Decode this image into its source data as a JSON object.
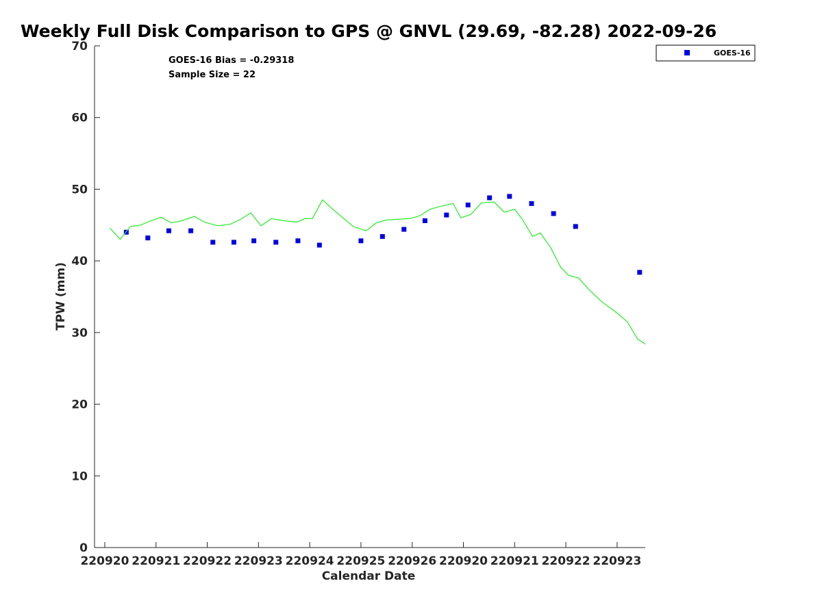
{
  "chart_data": {
    "type": "scatter",
    "title": "Weekly Full Disk Comparison to GPS @ GNVL (29.69, -82.28) 2022-09-26",
    "xlabel": "Calendar Date",
    "ylabel": "TPW (mm)",
    "ylim": [
      0,
      70
    ],
    "yticks": [
      0,
      10,
      20,
      30,
      40,
      50,
      60,
      70
    ],
    "xlim": [
      -0.2,
      10.55
    ],
    "xticks": [
      {
        "pos": 0,
        "label": "220920"
      },
      {
        "pos": 1,
        "label": "220921"
      },
      {
        "pos": 2,
        "label": "220922"
      },
      {
        "pos": 3,
        "label": "220923"
      },
      {
        "pos": 4,
        "label": "220924"
      },
      {
        "pos": 5,
        "label": "220925"
      },
      {
        "pos": 6,
        "label": "220926"
      },
      {
        "pos": 7,
        "label": "220920"
      },
      {
        "pos": 8,
        "label": "220921"
      },
      {
        "pos": 9,
        "label": "220922"
      },
      {
        "pos": 10,
        "label": "220923"
      }
    ],
    "grid": false,
    "legend_position": "top-right",
    "annotations": [
      "GOES-16 Bias = -0.29318",
      "Sample Size = 22"
    ],
    "series": [
      {
        "name": "GOES-16",
        "type": "scatter",
        "color": "#0000e6",
        "marker": "square",
        "x": [
          0.42,
          0.84,
          1.25,
          1.68,
          2.11,
          2.52,
          2.91,
          3.34,
          3.77,
          4.19,
          5.0,
          5.42,
          5.84,
          6.25,
          6.67,
          7.09,
          7.51,
          7.9,
          8.33,
          8.76,
          9.19,
          10.44
        ],
        "y": [
          44.0,
          43.2,
          44.2,
          44.2,
          42.6,
          42.6,
          42.8,
          42.6,
          42.8,
          42.2,
          42.8,
          43.4,
          44.4,
          45.6,
          46.4,
          47.8,
          48.8,
          49.0,
          48.0,
          46.6,
          44.8,
          38.4
        ]
      },
      {
        "name": "",
        "type": "line",
        "color": "#22ee22",
        "x": [
          0.1,
          0.3,
          0.5,
          0.7,
          0.9,
          1.1,
          1.3,
          1.5,
          1.75,
          1.95,
          2.2,
          2.45,
          2.65,
          2.85,
          3.05,
          3.25,
          3.5,
          3.75,
          3.9,
          4.05,
          4.25,
          4.45,
          4.65,
          4.85,
          5.1,
          5.3,
          5.5,
          5.7,
          5.95,
          6.15,
          6.35,
          6.55,
          6.8,
          6.95,
          7.15,
          7.35,
          7.6,
          7.8,
          8.0,
          8.15,
          8.35,
          8.5,
          8.7,
          8.9,
          9.05,
          9.25,
          9.45,
          9.7,
          9.95,
          10.2,
          10.4,
          10.55
        ],
        "y": [
          44.6,
          43.0,
          44.8,
          45.0,
          45.6,
          46.1,
          45.3,
          45.6,
          46.2,
          45.4,
          44.9,
          45.1,
          45.8,
          46.7,
          44.9,
          45.9,
          45.6,
          45.4,
          45.9,
          45.9,
          48.5,
          47.2,
          46.0,
          44.8,
          44.2,
          45.3,
          45.7,
          45.8,
          45.9,
          46.3,
          47.2,
          47.6,
          48.0,
          46.0,
          46.5,
          48.1,
          48.2,
          46.8,
          47.2,
          45.8,
          43.4,
          43.9,
          41.9,
          39.1,
          38.0,
          37.6,
          36.0,
          34.3,
          33.0,
          31.5,
          29.1,
          28.4
        ]
      }
    ]
  }
}
